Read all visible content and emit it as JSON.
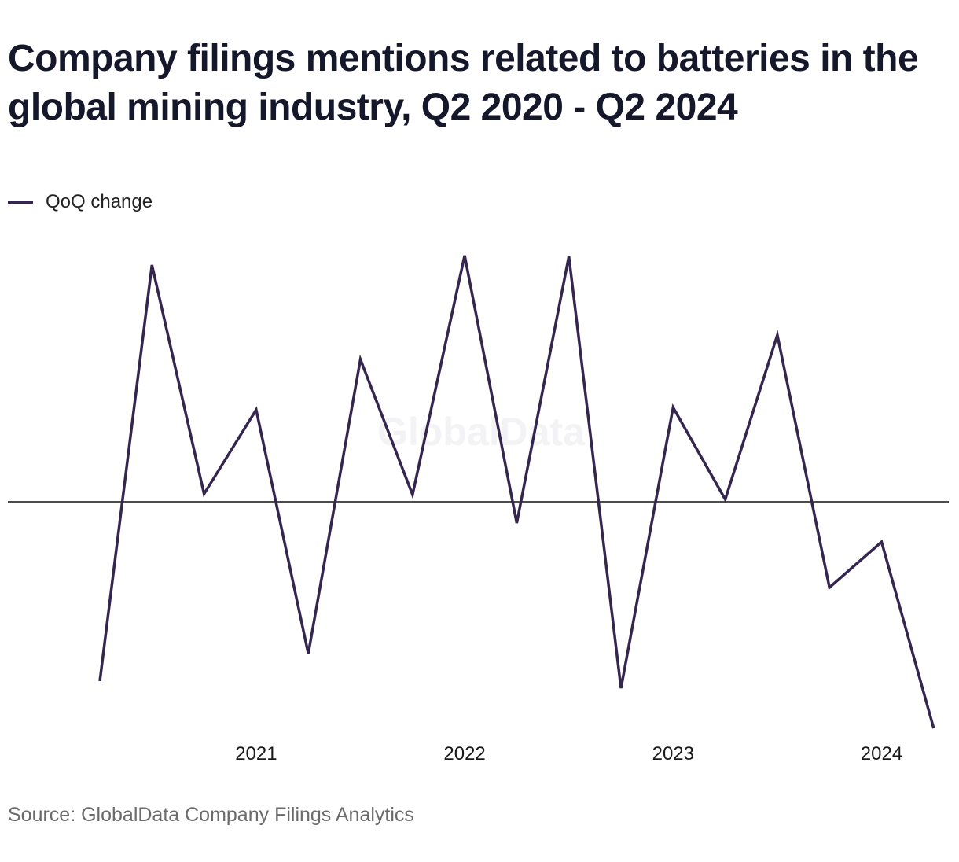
{
  "title": "Company filings mentions related to batteries in the global mining industry, Q2 2020 - Q2 2024",
  "source": "Source: GlobalData Company Filings Analytics",
  "watermark": "GlobalData",
  "colors": {
    "series": "#35264f",
    "zero_line": "#111111",
    "text": "#15172b"
  },
  "chart_data": {
    "type": "line",
    "title": "Company filings mentions related to batteries in the global mining industry, Q2 2020 - Q2 2024",
    "xlabel": "",
    "ylabel": "",
    "x": [
      "Q2 2020",
      "Q3 2020",
      "Q4 2020",
      "Q1 2021",
      "Q2 2021",
      "Q3 2021",
      "Q4 2021",
      "Q1 2022",
      "Q2 2022",
      "Q3 2022",
      "Q4 2022",
      "Q1 2023",
      "Q2 2023",
      "Q3 2023",
      "Q4 2023",
      "Q1 2024",
      "Q2 2024"
    ],
    "x_tick_labels": [
      {
        "label": "2021",
        "index": 3
      },
      {
        "label": "2022",
        "index": 7
      },
      {
        "label": "2023",
        "index": 11
      },
      {
        "label": "2024",
        "index": 15
      }
    ],
    "series": [
      {
        "name": "QoQ change",
        "values": [
          -228,
          301,
          10,
          117,
          -193,
          181,
          9,
          313,
          -27,
          312,
          -237,
          120,
          3,
          212,
          -109,
          -51,
          -288
        ]
      }
    ],
    "ylim": [
      -320,
      340
    ],
    "zero_line": true,
    "grid": false,
    "legend": "top-left"
  }
}
